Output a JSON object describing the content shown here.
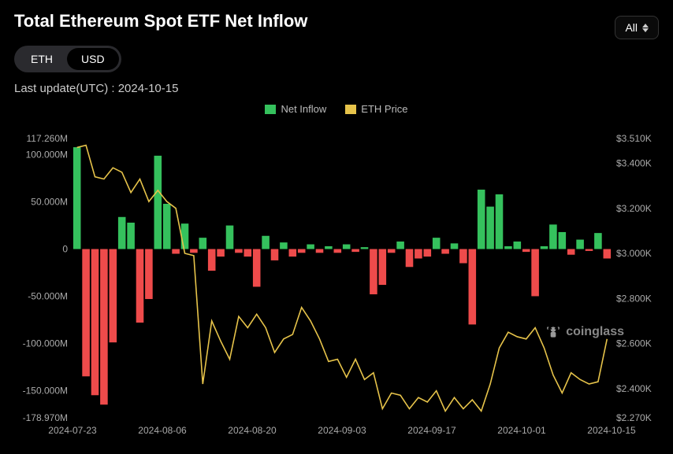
{
  "title": "Total Ethereum Spot ETF Net Inflow",
  "all_button": "All",
  "toggle": {
    "eth": "ETH",
    "usd": "USD",
    "active": "usd"
  },
  "last_update_label": "Last update(UTC) : ",
  "last_update_value": "2024-10-15",
  "legend": {
    "net_inflow": "Net Inflow",
    "eth_price": "ETH Price"
  },
  "colors": {
    "pos_bar": "#35c15d",
    "neg_bar": "#ee4b4b",
    "line": "#e6c34a",
    "bg": "#000000",
    "axis_text": "#aaaaaa",
    "title_text": "#ffffff"
  },
  "left_axis": {
    "min": -178.97,
    "max": 117.26,
    "ticks": [
      {
        "v": 117.26,
        "label": "117.260M"
      },
      {
        "v": 100,
        "label": "100.000M"
      },
      {
        "v": 50,
        "label": "50.000M"
      },
      {
        "v": 0,
        "label": "0"
      },
      {
        "v": -50,
        "label": "-50.000M"
      },
      {
        "v": -100,
        "label": "-100.000M"
      },
      {
        "v": -150,
        "label": "-150.000M"
      },
      {
        "v": -178.97,
        "label": "-178.970M"
      }
    ]
  },
  "right_axis": {
    "min": 2270,
    "max": 3510,
    "ticks": [
      {
        "v": 3510,
        "label": "$3.510K"
      },
      {
        "v": 3400,
        "label": "$3.400K"
      },
      {
        "v": 3200,
        "label": "$3.200K"
      },
      {
        "v": 3000,
        "label": "$3.000K"
      },
      {
        "v": 2800,
        "label": "$2.800K"
      },
      {
        "v": 2600,
        "label": "$2.600K"
      },
      {
        "v": 2400,
        "label": "$2.400K"
      },
      {
        "v": 2270,
        "label": "$2.270K"
      }
    ]
  },
  "x_axis": {
    "labels": [
      "2024-07-23",
      "2024-08-06",
      "2024-08-20",
      "2024-09-03",
      "2024-09-17",
      "2024-10-01",
      "2024-10-15"
    ]
  },
  "bars": [
    108,
    -135,
    -155,
    -165,
    -99,
    34,
    28,
    -78,
    -53,
    99,
    48,
    -5,
    27,
    -4,
    12,
    -23,
    -8,
    25,
    -4,
    -8,
    -40,
    14,
    -12,
    7,
    -8,
    -4,
    5,
    -4,
    3,
    -4,
    5,
    -3,
    2,
    -48,
    -38,
    -4,
    8,
    -19,
    -10,
    -8,
    12,
    -5,
    6,
    -15,
    -80,
    63,
    45,
    58,
    3,
    8,
    -3,
    -50,
    3,
    26,
    18,
    -6,
    10,
    -2,
    17,
    -10
  ],
  "line": [
    3470,
    3480,
    3340,
    3330,
    3380,
    3360,
    3270,
    3330,
    3230,
    3280,
    3230,
    3200,
    3000,
    2990,
    2420,
    2700,
    2610,
    2530,
    2720,
    2670,
    2730,
    2670,
    2560,
    2620,
    2640,
    2760,
    2700,
    2620,
    2520,
    2530,
    2450,
    2530,
    2440,
    2470,
    2310,
    2380,
    2370,
    2310,
    2360,
    2340,
    2390,
    2300,
    2360,
    2310,
    2350,
    2300,
    2420,
    2580,
    2650,
    2630,
    2620,
    2670,
    2580,
    2460,
    2380,
    2470,
    2440,
    2420,
    2430,
    2620
  ],
  "watermark": "coinglass"
}
